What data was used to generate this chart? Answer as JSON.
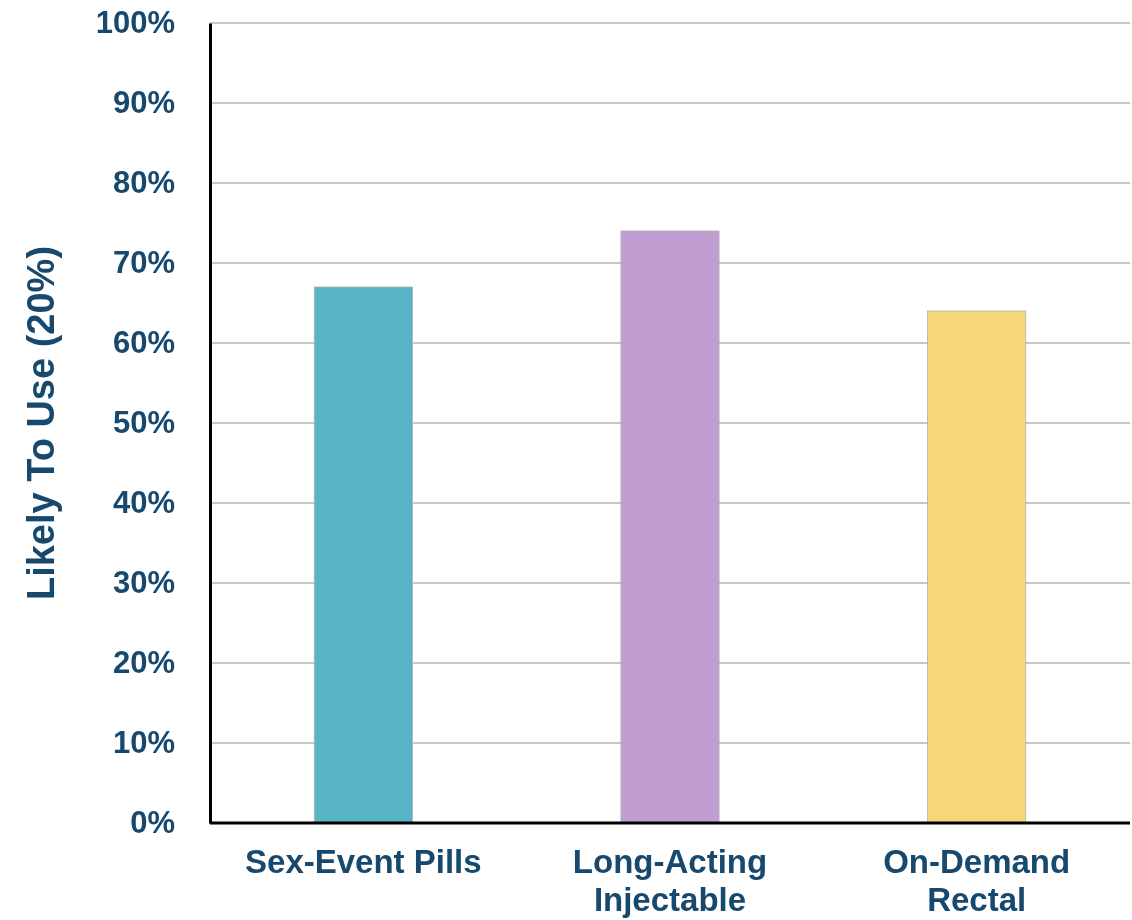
{
  "chart_data": {
    "type": "bar",
    "ylabel": "Likely To Use (20%)",
    "categories": [
      "Sex-Event Pills",
      "Long-Acting Injectable",
      "On-Demand Rectal"
    ],
    "values": [
      67,
      74,
      64
    ],
    "colors": [
      "#57b5c5",
      "#c29dd2",
      "#f7d778"
    ],
    "ylim": [
      0,
      100
    ],
    "yticks": [
      {
        "value": 0,
        "label": "0%"
      },
      {
        "value": 10,
        "label": "10%"
      },
      {
        "value": 20,
        "label": "20%"
      },
      {
        "value": 30,
        "label": "30%"
      },
      {
        "value": 40,
        "label": "40%"
      },
      {
        "value": 50,
        "label": "50%"
      },
      {
        "value": 60,
        "label": "60%"
      },
      {
        "value": 70,
        "label": "70%"
      },
      {
        "value": 80,
        "label": "80%"
      },
      {
        "value": 90,
        "label": "90%"
      },
      {
        "value": 100,
        "label": "100%"
      }
    ],
    "grid": "y"
  }
}
